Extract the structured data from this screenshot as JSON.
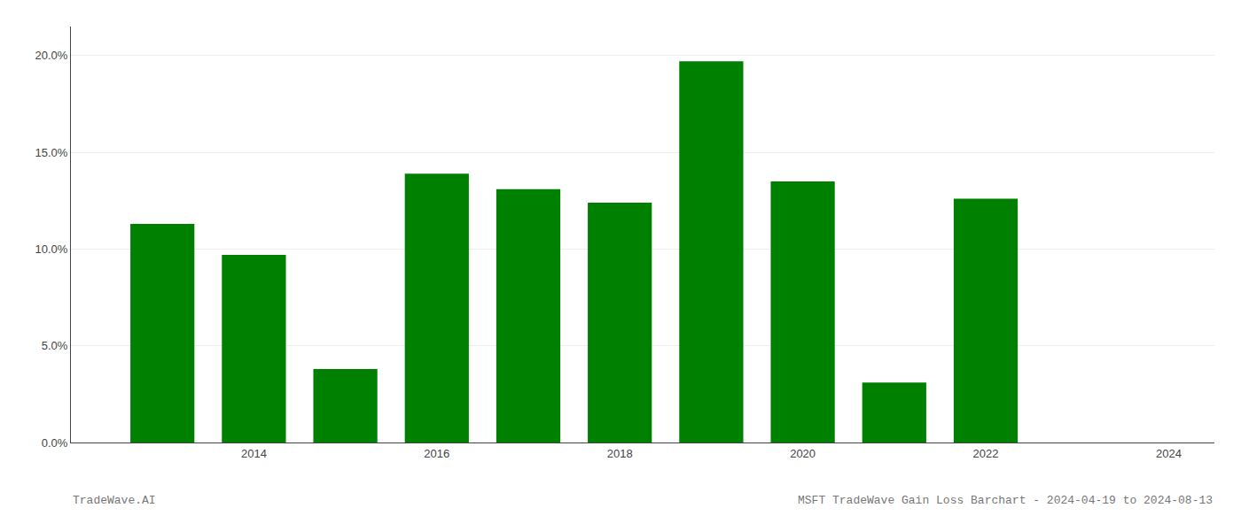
{
  "chart_data": {
    "type": "bar",
    "x": [
      2013,
      2014,
      2015,
      2016,
      2017,
      2018,
      2019,
      2020,
      2021,
      2022
    ],
    "values": [
      0.113,
      0.097,
      0.038,
      0.139,
      0.131,
      0.124,
      0.197,
      0.135,
      0.031,
      0.126
    ],
    "color": "#008000",
    "xlim": [
      2012.0,
      2024.5
    ],
    "xticks": [
      2014,
      2016,
      2018,
      2020,
      2022,
      2024
    ],
    "ylim": [
      0,
      0.215
    ],
    "yticks": [
      {
        "value": 0.0,
        "label": "0.0%"
      },
      {
        "value": 0.05,
        "label": "5.0%"
      },
      {
        "value": 0.1,
        "label": "10.0%"
      },
      {
        "value": 0.15,
        "label": "15.0%"
      },
      {
        "value": 0.2,
        "label": "20.0%"
      }
    ],
    "grid": true,
    "annotations": [
      "TradeWave.AI",
      "MSFT TradeWave Gain Loss Barchart - 2024-04-19 to 2024-08-13"
    ]
  }
}
